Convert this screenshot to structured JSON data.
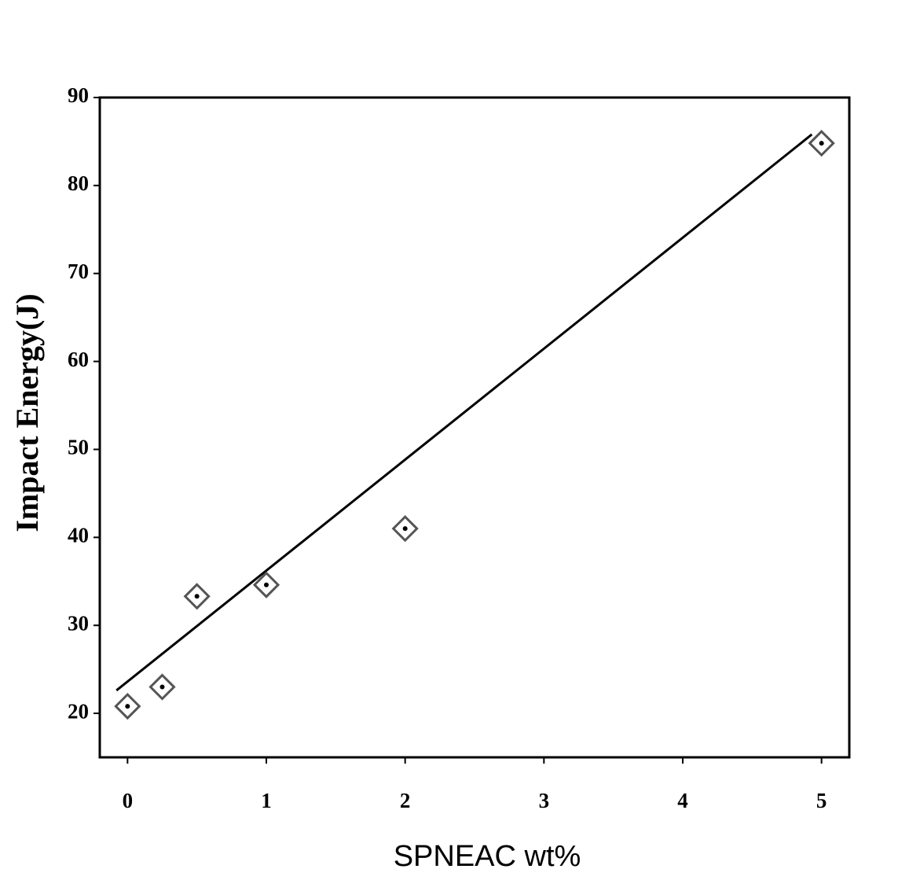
{
  "chart_data": {
    "type": "scatter",
    "x_label": "SPNEAC wt%",
    "y_label": "Impact Energy(J)",
    "series": [
      {
        "color": "#555555",
        "x": [
          0,
          0.25,
          0.5,
          1,
          2,
          5
        ],
        "values": [
          20.8,
          23,
          33.3,
          34.6,
          41,
          84.8
        ]
      }
    ],
    "trendline": {
      "color": "#000000",
      "x": [
        -0.08,
        4.93
      ],
      "values": [
        22.6,
        85.8
      ]
    },
    "xlim": [
      -0.2,
      5.2
    ],
    "xticks": [
      0,
      1,
      2,
      3,
      4,
      5
    ],
    "ylim": [
      15,
      90
    ],
    "yticks": [
      20,
      30,
      40,
      50,
      60,
      70,
      80,
      90
    ],
    "grid": false
  }
}
